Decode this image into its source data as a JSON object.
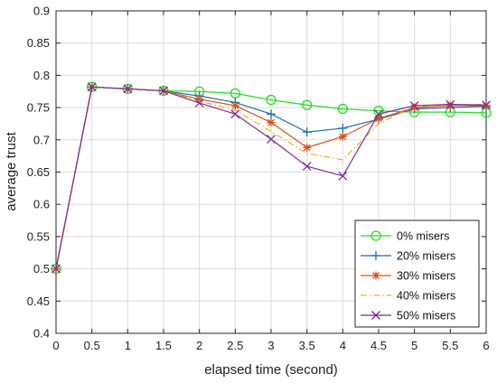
{
  "chart_data": {
    "type": "line",
    "title": "",
    "xlabel": "elapsed time (second)",
    "ylabel": "average trust",
    "xlim": [
      0,
      6
    ],
    "ylim": [
      0.4,
      0.9
    ],
    "xticks": [
      "0",
      "0.5",
      "1",
      "1.5",
      "2",
      "2.5",
      "3",
      "3.5",
      "4",
      "4.5",
      "5",
      "5.5",
      "6"
    ],
    "yticks": [
      "0.4",
      "0.45",
      "0.5",
      "0.55",
      "0.6",
      "0.65",
      "0.7",
      "0.75",
      "0.8",
      "0.85",
      "0.9"
    ],
    "grid": true,
    "legend_position": "bottom-right",
    "x": [
      0,
      0.5,
      1,
      1.5,
      2,
      2.5,
      3,
      3.5,
      4,
      4.5,
      5,
      5.5,
      6
    ],
    "series": [
      {
        "name": "0% misers",
        "color": "#22dd22",
        "marker": "circle",
        "line_style": "solid",
        "values": [
          0.5,
          0.782,
          0.779,
          0.776,
          0.775,
          0.772,
          0.762,
          0.754,
          0.748,
          0.745,
          0.743,
          0.743,
          0.742
        ]
      },
      {
        "name": "20% misers",
        "color": "#1f6fae",
        "marker": "plus",
        "line_style": "solid",
        "values": [
          0.5,
          0.782,
          0.779,
          0.776,
          0.768,
          0.758,
          0.74,
          0.712,
          0.718,
          0.732,
          0.748,
          0.75,
          0.752
        ]
      },
      {
        "name": "30% misers",
        "color": "#d95319",
        "marker": "asterisk",
        "line_style": "solid",
        "values": [
          0.5,
          0.782,
          0.779,
          0.776,
          0.763,
          0.753,
          0.727,
          0.688,
          0.705,
          0.733,
          0.75,
          0.753,
          0.753
        ]
      },
      {
        "name": "40% misers",
        "color": "#edb120",
        "marker": "none",
        "line_style": "dashdot",
        "values": [
          0.5,
          0.782,
          0.779,
          0.776,
          0.76,
          0.746,
          0.713,
          0.679,
          0.669,
          0.725,
          0.752,
          0.754,
          0.755
        ]
      },
      {
        "name": "50% misers",
        "color": "#7e2f8e",
        "marker": "x",
        "line_style": "solid",
        "values": [
          0.5,
          0.782,
          0.779,
          0.776,
          0.757,
          0.74,
          0.701,
          0.659,
          0.644,
          0.74,
          0.753,
          0.755,
          0.754
        ]
      }
    ]
  }
}
